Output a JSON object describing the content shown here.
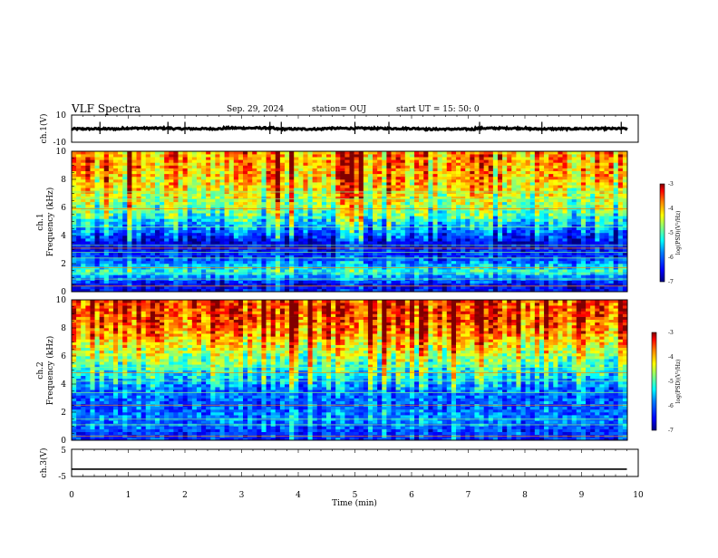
{
  "header": {
    "title": "VLF Spectra",
    "date": "Sep. 29, 2024",
    "station": "station= OUJ",
    "start": "start  UT  =   15: 50: 0"
  },
  "colors": {
    "axis": "#000000",
    "colormap": [
      "#00008f",
      "#0000ff",
      "#0080ff",
      "#00ffff",
      "#80ff80",
      "#ffff00",
      "#ff8000",
      "#ff0000",
      "#800000"
    ]
  },
  "chart_data": [
    {
      "type": "line",
      "ylabel": "ch.1(V)",
      "ylim": [
        -10,
        10
      ],
      "yticks": [
        "10",
        "-10"
      ],
      "series": [
        {
          "values": [
            -0.2,
            0.3,
            -0.1,
            0.4,
            -0.3,
            0.2,
            0.1,
            -0.4,
            0.3,
            -0.2,
            0.0,
            0.2
          ]
        }
      ],
      "spikes_at_min": [
        0.5,
        1.7,
        2.0,
        3.5,
        3.7,
        5.0,
        5.6,
        7.2,
        8.3,
        9.7
      ],
      "xlim": [
        0,
        10
      ]
    },
    {
      "type": "heatmap",
      "ylabel": [
        "ch.1",
        "Frequency (kHz)"
      ],
      "ylim": [
        0,
        10
      ],
      "yticks": [
        "0",
        "2",
        "4",
        "6",
        "8",
        "10"
      ],
      "xlim": [
        0,
        10
      ],
      "colorbar": {
        "label": "log(PSD)(V²/Hz)",
        "range": [
          -7,
          -3
        ],
        "ticks": [
          "-3",
          "-4",
          "-5",
          "-6",
          "-7"
        ]
      },
      "approx_log_psd_by_freq_khz": {
        "0.5": -6.5,
        "1.5": -5.2,
        "2.5": -6.3,
        "3.5": -6.6,
        "4.5": -5.8,
        "5.5": -5.0,
        "6.5": -4.6,
        "7.5": -4.2,
        "8.5": -4.0,
        "9.5": -3.9
      },
      "constant_lines_khz": [
        0.4,
        0.9,
        1.3,
        1.7,
        2.4,
        2.8,
        3.1,
        3.3,
        4.6,
        5.9,
        6.6,
        7.1
      ]
    },
    {
      "type": "heatmap",
      "ylabel": [
        "ch.2",
        "Frequency (kHz)"
      ],
      "ylim": [
        0,
        10
      ],
      "yticks": [
        "0",
        "2",
        "4",
        "6",
        "8",
        "10"
      ],
      "xlim": [
        0,
        10
      ],
      "colorbar": {
        "label": "log(PSD)(V²/Hz)",
        "range": [
          -7,
          -3
        ],
        "ticks": [
          "-3",
          "-4",
          "-5",
          "-6",
          "-7"
        ]
      },
      "approx_log_psd_by_freq_khz": {
        "0.5": -6.2,
        "1.5": -5.8,
        "2.5": -6.0,
        "3.5": -5.9,
        "4.5": -5.3,
        "5.5": -4.8,
        "6.5": -4.3,
        "7.5": -3.8,
        "8.5": -3.5,
        "9.5": -3.4
      },
      "constant_lines_khz": [
        0.3,
        1.1,
        1.5,
        2.5,
        3.4,
        4.2,
        4.8,
        5.2
      ]
    },
    {
      "type": "line",
      "ylabel": "ch.3(V)",
      "ylim": [
        -5,
        5
      ],
      "yticks": [
        "5",
        "-5"
      ],
      "series": [
        {
          "values": [
            -2.3,
            -2.3
          ]
        }
      ],
      "xlim": [
        0,
        10
      ],
      "xlabel": "Time (min)",
      "xticks": [
        "0",
        "1",
        "2",
        "3",
        "4",
        "5",
        "6",
        "7",
        "8",
        "9",
        "10"
      ]
    }
  ]
}
